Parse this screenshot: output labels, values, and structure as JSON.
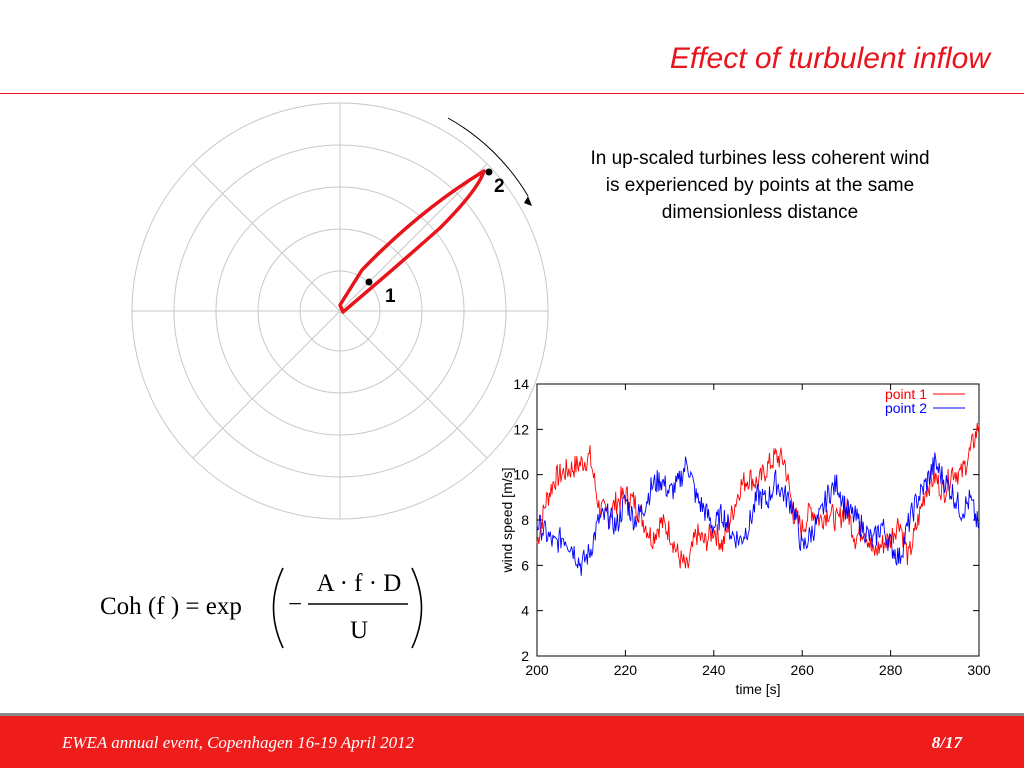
{
  "slide": {
    "title": "Effect of turbulent inflow",
    "caption": "In up-scaled turbines less coherent wind is experienced by points at the same dimensionless distance",
    "footer_left": "EWEA annual event, Copenhagen 16-19 April 2012",
    "footer_right": "8/17",
    "accent_color": "#e8141c"
  },
  "rotor_diagram": {
    "point_labels": [
      "1",
      "2"
    ]
  },
  "formula": {
    "lhs": "Coh (f ) = exp",
    "minus": "−",
    "numerator": "A · f · D",
    "denominator": "U"
  },
  "chart_data": {
    "type": "line",
    "xlabel": "time [s]",
    "ylabel": "wind speed [m/s]",
    "xlim": [
      200,
      300
    ],
    "ylim": [
      2,
      14
    ],
    "x_ticks": [
      200,
      220,
      240,
      260,
      280,
      300
    ],
    "y_ticks": [
      2,
      4,
      6,
      8,
      10,
      12,
      14
    ],
    "legend_position": "top-right",
    "grid": false,
    "series": [
      {
        "name": "point 1",
        "color": "#ff0000",
        "x": [
          200,
          202,
          204,
          206,
          208,
          210,
          212,
          214,
          216,
          218,
          220,
          222,
          224,
          226,
          228,
          230,
          232,
          234,
          236,
          238,
          240,
          242,
          244,
          246,
          248,
          250,
          252,
          254,
          256,
          258,
          260,
          262,
          264,
          266,
          268,
          270,
          272,
          274,
          276,
          278,
          280,
          282,
          284,
          286,
          288,
          290,
          292,
          294,
          296,
          298,
          300
        ],
        "y": [
          7.0,
          8.8,
          9.8,
          10.1,
          10.3,
          10.5,
          10.8,
          8.6,
          8.2,
          8.8,
          9.1,
          8.8,
          8.0,
          7.2,
          7.9,
          7.5,
          6.4,
          5.8,
          7.4,
          7.0,
          7.6,
          6.9,
          8.2,
          9.5,
          9.9,
          9.6,
          10.3,
          10.8,
          10.6,
          8.3,
          7.6,
          8.5,
          8.0,
          8.4,
          7.9,
          8.6,
          7.2,
          7.7,
          6.5,
          6.9,
          7.2,
          8.0,
          6.3,
          7.8,
          9.4,
          9.9,
          9.2,
          10.2,
          10.0,
          11.0,
          12.2
        ]
      },
      {
        "name": "point 2",
        "color": "#0000ff",
        "x": [
          200,
          202,
          204,
          206,
          208,
          210,
          212,
          214,
          216,
          218,
          220,
          222,
          224,
          226,
          228,
          230,
          232,
          234,
          236,
          238,
          240,
          242,
          244,
          246,
          248,
          250,
          252,
          254,
          256,
          258,
          260,
          262,
          264,
          266,
          268,
          270,
          272,
          274,
          276,
          278,
          280,
          282,
          284,
          286,
          288,
          290,
          292,
          294,
          296,
          298,
          300
        ],
        "y": [
          7.9,
          7.4,
          6.9,
          7.3,
          6.8,
          6.0,
          6.6,
          8.0,
          8.2,
          7.7,
          8.9,
          8.0,
          8.5,
          9.5,
          9.8,
          9.2,
          9.6,
          10.6,
          9.0,
          8.4,
          7.7,
          8.3,
          7.4,
          7.1,
          7.8,
          9.1,
          8.8,
          9.7,
          9.1,
          8.6,
          6.7,
          7.4,
          8.1,
          9.2,
          9.6,
          8.4,
          8.1,
          7.6,
          7.0,
          7.8,
          6.9,
          6.3,
          7.8,
          8.9,
          9.6,
          10.5,
          9.8,
          9.2,
          8.4,
          8.9,
          7.6
        ]
      }
    ]
  }
}
